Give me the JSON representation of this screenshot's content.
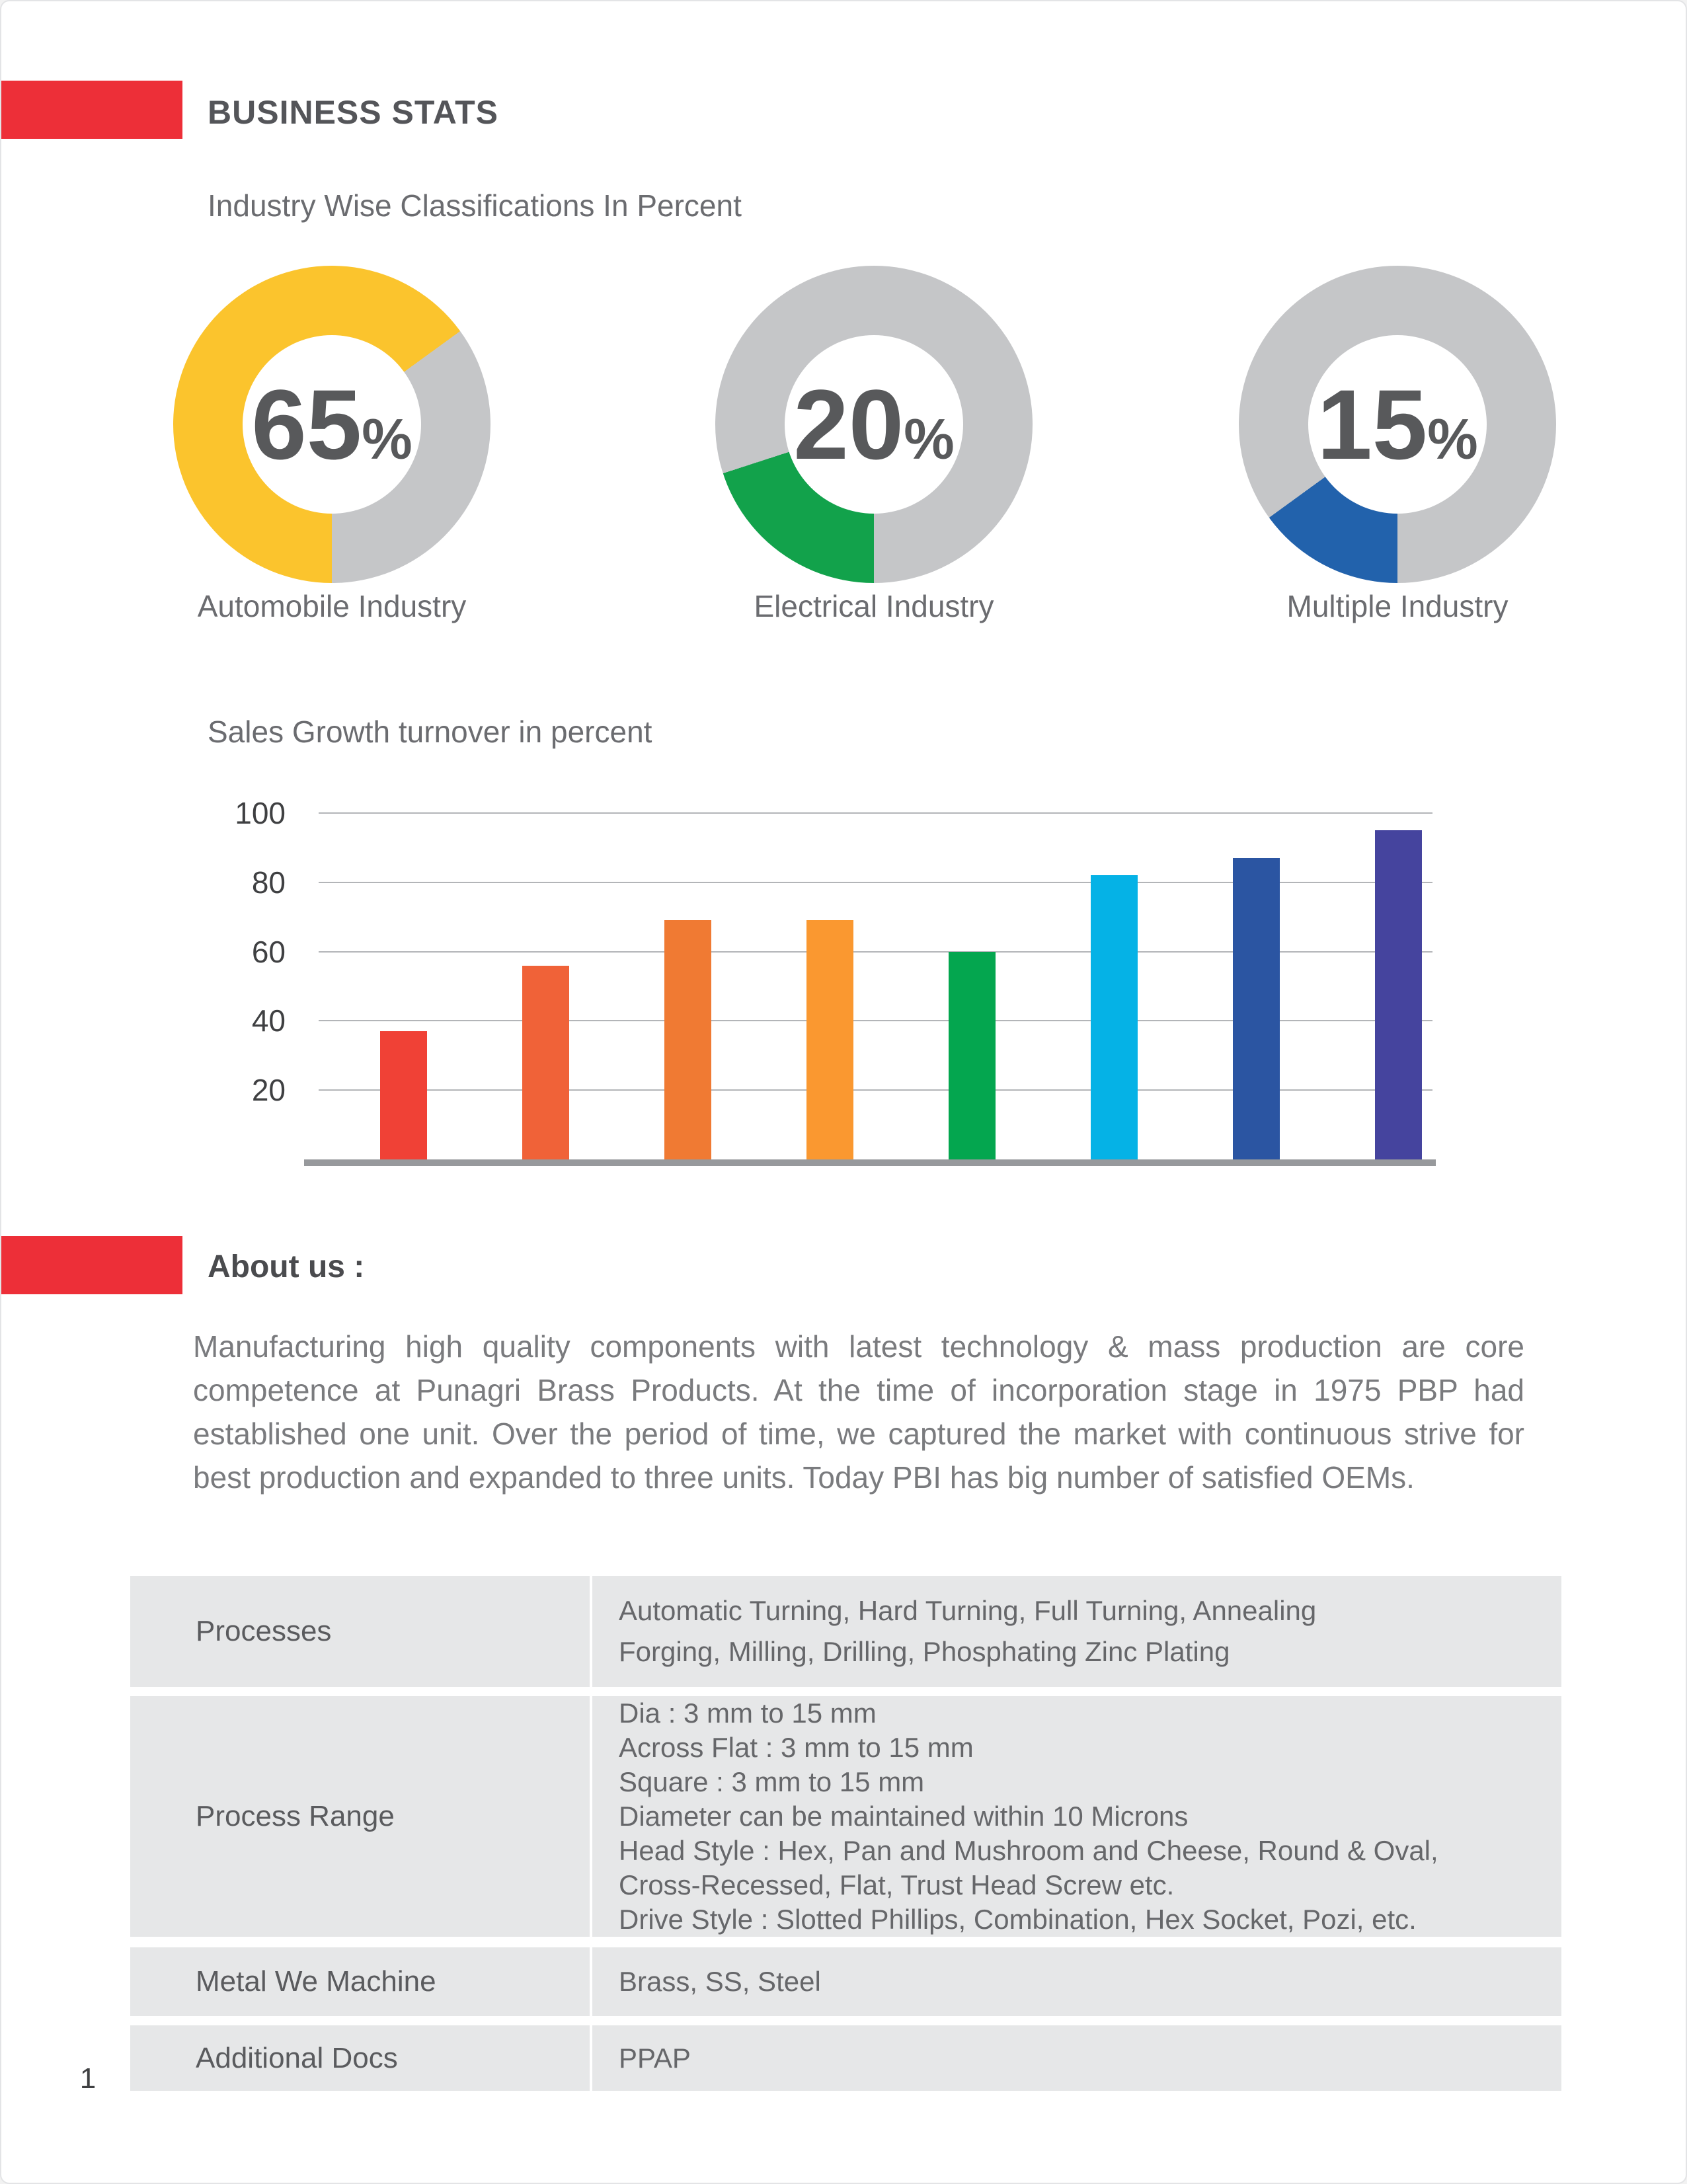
{
  "page": {
    "number": "1"
  },
  "header": {
    "title": "BUSINESS STATS"
  },
  "sections": {
    "industry": {
      "title": "Industry Wise Classifications In Percent"
    },
    "sales": {
      "title": "Sales Growth turnover in percent"
    },
    "about": {
      "title": "About us :",
      "body": "Manufacturing high quality components with latest technology & mass production are core competence at Punagri Brass Products. At the time of incorporation stage in 1975 PBP had established one unit. Over the period of time, we captured the market with continuous strive for best production and expanded to three units. Today PBI has big number of satisfied OEMs."
    }
  },
  "chart_data": [
    {
      "type": "pie",
      "style": "donut",
      "title": "Industry Wise Classifications In Percent",
      "track_color": "#c5c6c8",
      "slices": [
        {
          "label": "Automobile Industry",
          "value": 65,
          "unit": "%",
          "color": "#fbc42d"
        },
        {
          "label": "Electrical Industry",
          "value": 20,
          "unit": "%",
          "color": "#12a24b"
        },
        {
          "label": "Multiple Industry",
          "value": 15,
          "unit": "%",
          "color": "#2262ac"
        }
      ]
    },
    {
      "type": "bar",
      "title": "Sales Growth turnover in percent",
      "categories": [
        "",
        "",
        "",
        "",
        "",
        "",
        "",
        ""
      ],
      "values": [
        37,
        56,
        69,
        69,
        60,
        82,
        87,
        95
      ],
      "colors": [
        "#f04136",
        "#f06238",
        "#f07a33",
        "#fa9830",
        "#04a64f",
        "#05b2e6",
        "#2b55a2",
        "#45449e"
      ],
      "xlabel": "",
      "ylabel": "",
      "ylim": [
        0,
        100
      ],
      "yticks": [
        20,
        40,
        60,
        80,
        100
      ],
      "grid": true,
      "legend": false
    }
  ],
  "table": {
    "rows": [
      {
        "label": "Processes",
        "value_lines": [
          "Automatic Turning, Hard Turning, Full Turning, Annealing",
          "Forging, Milling, Drilling, Phosphating Zinc Plating"
        ]
      },
      {
        "label": "Process Range",
        "value_lines": [
          "Dia : 3 mm to 15 mm",
          "Across Flat : 3 mm to 15 mm",
          "Square : 3 mm to 15 mm",
          "Diameter can be maintained within 10 Microns",
          "Head Style : Hex, Pan and Mushroom and Cheese, Round & Oval,",
          "Cross-Recessed, Flat, Trust Head Screw etc.",
          "Drive Style : Slotted Phillips, Combination, Hex Socket, Pozi, etc."
        ]
      },
      {
        "label": "Metal We Machine",
        "value_lines": [
          "Brass, SS, Steel"
        ]
      },
      {
        "label": "Additional Docs",
        "value_lines": [
          "PPAP"
        ]
      }
    ]
  },
  "colors": {
    "accent_red": "#ed2f38",
    "cell_bg": "#e6e7e8",
    "gridline": "#b3b5b8",
    "axis_baseline": "#97999c",
    "heading_text": "#545559",
    "body_text": "#7a7b7e"
  }
}
